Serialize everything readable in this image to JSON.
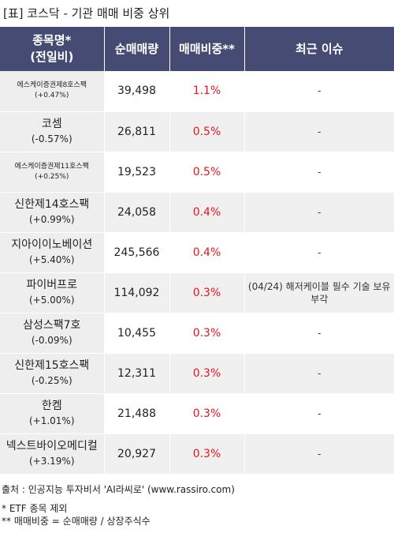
{
  "title": "[표] 코스닥 - 기관 매매 비중 상위",
  "table": {
    "headers": {
      "name_line1": "종목명*",
      "name_line2": "(전일비)",
      "volume": "순매매량",
      "ratio": "매매비중**",
      "issue": "최근 이슈"
    },
    "rows": [
      {
        "name": "에스케이증권제8호스팩",
        "change": "(+0.47%)",
        "volume": "39,498",
        "ratio": "1.1%",
        "issue": "-",
        "small": true
      },
      {
        "name": "코셈",
        "change": "(-0.57%)",
        "volume": "26,811",
        "ratio": "0.5%",
        "issue": "-",
        "small": false
      },
      {
        "name": "에스케이증권제11호스팩",
        "change": "(+0.25%)",
        "volume": "19,523",
        "ratio": "0.5%",
        "issue": "-",
        "small": true
      },
      {
        "name": "신한제14호스팩",
        "change": "(+0.99%)",
        "volume": "24,058",
        "ratio": "0.4%",
        "issue": "-",
        "small": false
      },
      {
        "name": "지아이이노베이션",
        "change": "(+5.40%)",
        "volume": "245,566",
        "ratio": "0.4%",
        "issue": "-",
        "small": false
      },
      {
        "name": "파이버프로",
        "change": "(+5.00%)",
        "volume": "114,092",
        "ratio": "0.3%",
        "issue": "(04/24) 해저케이블 필수 기술 보유 부각",
        "small": false
      },
      {
        "name": "삼성스팩7호",
        "change": "(-0.09%)",
        "volume": "10,455",
        "ratio": "0.3%",
        "issue": "-",
        "small": false
      },
      {
        "name": "신한제15호스팩",
        "change": "(-0.25%)",
        "volume": "12,311",
        "ratio": "0.3%",
        "issue": "-",
        "small": false
      },
      {
        "name": "한켐",
        "change": "(+1.01%)",
        "volume": "21,488",
        "ratio": "0.3%",
        "issue": "-",
        "small": false
      },
      {
        "name": "넥스트바이오메디컬",
        "change": "(+3.19%)",
        "volume": "20,927",
        "ratio": "0.3%",
        "issue": "-",
        "small": false
      }
    ]
  },
  "footer": {
    "source": "출처 : 인공지능 투자비서 'AI라씨로' (www.rassiro.com)",
    "note1": "* ETF 종목 제외",
    "note2": "** 매매비중 = 순매매량 / 상장주식수"
  },
  "colors": {
    "header_bg": "#454b72",
    "ratio_text": "#e8161b"
  }
}
